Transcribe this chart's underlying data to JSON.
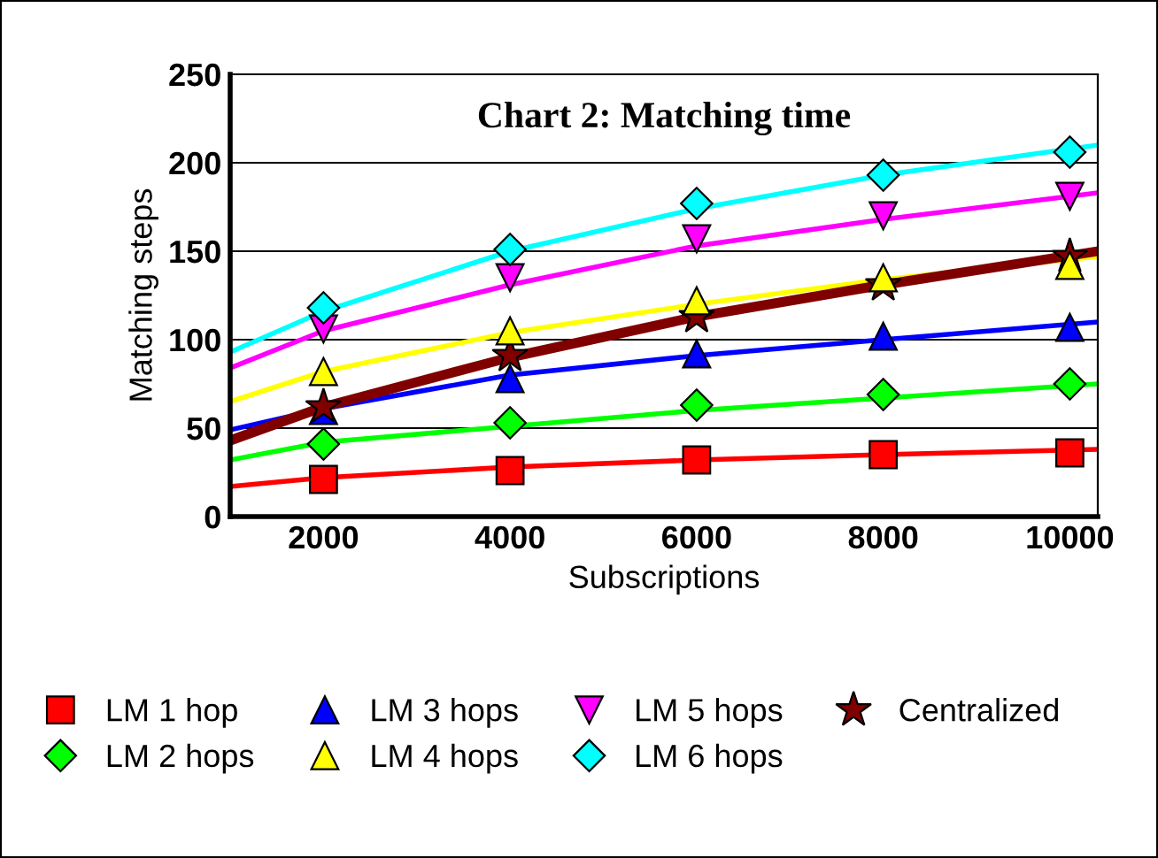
{
  "chart_data": {
    "type": "scatter",
    "title": "Chart 2: Matching time",
    "xlabel": "Subscriptions",
    "ylabel": "Matching steps",
    "x": [
      2000,
      4000,
      6000,
      8000,
      10000
    ],
    "xlim": [
      1000,
      10300
    ],
    "xticks": [
      2000,
      4000,
      6000,
      8000,
      10000
    ],
    "ylim": [
      0,
      250
    ],
    "yticks": [
      0,
      50,
      100,
      150,
      200,
      250
    ],
    "grid": "y",
    "legend": "bottom",
    "series": [
      {
        "name": "LM 1 hop",
        "color": "#ff0000",
        "marker": "square",
        "values": [
          21,
          26,
          32,
          35,
          36
        ]
      },
      {
        "name": "LM 3 hops",
        "color": "#0000ff",
        "marker": "triangle",
        "values": [
          60,
          78,
          92,
          102,
          107
        ]
      },
      {
        "name": "LM 5 hops",
        "color": "#ff00ff",
        "marker": "triangle_down",
        "values": [
          106,
          135,
          157,
          170,
          181
        ]
      },
      {
        "name": "Centralized",
        "color": "#800000",
        "marker": "star",
        "values": [
          62,
          91,
          113,
          131,
          147
        ]
      },
      {
        "name": "LM 2 hops",
        "color": "#00ff00",
        "marker": "diamond",
        "values": [
          41,
          53,
          63,
          69,
          75
        ]
      },
      {
        "name": "LM 4 hops",
        "color": "#ffff00",
        "marker": "triangle",
        "values": [
          82,
          105,
          122,
          135,
          142
        ]
      },
      {
        "name": "LM 6 hops",
        "color": "#00ffff",
        "marker": "diamond",
        "values": [
          118,
          151,
          177,
          193,
          206
        ]
      },
      {
        "type": "line",
        "color": "#ff0000",
        "x": [
          1000,
          2000,
          4000,
          6000,
          8000,
          10300
        ],
        "values": [
          17,
          22,
          28,
          32,
          35,
          38
        ]
      },
      {
        "type": "line",
        "color": "#00ff00",
        "x": [
          1000,
          2000,
          4000,
          6000,
          8000,
          10300
        ],
        "values": [
          32,
          42,
          51,
          60,
          67,
          75
        ]
      },
      {
        "type": "line",
        "color": "#0000ff",
        "x": [
          1000,
          2000,
          4000,
          6000,
          8000,
          10300
        ],
        "values": [
          49,
          61,
          80,
          91,
          100,
          110
        ]
      },
      {
        "type": "line",
        "color": "#ffff00",
        "x": [
          1000,
          2000,
          4000,
          6000,
          8000,
          10300
        ],
        "values": [
          65,
          82,
          104,
          120,
          134,
          147
        ]
      },
      {
        "type": "line",
        "color": "#ff00ff",
        "x": [
          1000,
          2000,
          4000,
          6000,
          8000,
          10300
        ],
        "values": [
          84,
          105,
          131,
          153,
          168,
          183
        ]
      },
      {
        "type": "line",
        "color": "#00ffff",
        "x": [
          1000,
          2000,
          4000,
          6000,
          8000,
          10300
        ],
        "values": [
          93,
          116,
          150,
          174,
          193,
          210
        ]
      },
      {
        "type": "line",
        "color": "#800000",
        "x": [
          1000,
          2000,
          4000,
          6000,
          8000,
          10300
        ],
        "values": [
          43,
          62,
          90,
          113,
          131,
          150
        ]
      }
    ]
  }
}
